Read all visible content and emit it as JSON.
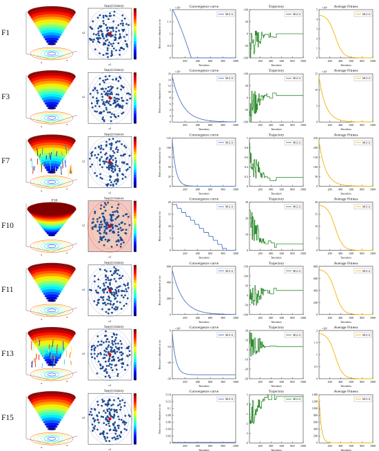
{
  "figure": {
    "rows": [
      {
        "label": "F1",
        "surface_title": "F1",
        "search_title": "Search history",
        "conv_title": "Convergence curve",
        "traj_title": "Trajectory",
        "fit_title": "Average Fitness",
        "conv": {
          "ylim": [
            0,
            2
          ],
          "yticks": [
            "0",
            "0.5",
            "1",
            "1.5",
            "2"
          ],
          "exp": "×10⁴",
          "shape": "step",
          "y0": 2,
          "y1": 0
        },
        "traj": {
          "ylim": [
            -100,
            100
          ],
          "yticks": [
            "-100",
            "-50",
            "0",
            "50",
            "100"
          ],
          "final": 0,
          "start": -100
        },
        "fit": {
          "ylim": [
            0,
            5
          ],
          "yticks": [
            "0",
            "1",
            "2",
            "3",
            "4",
            "5"
          ],
          "exp": "×10⁴",
          "shape": "smooth",
          "y0": 4.5
        }
      },
      {
        "label": "F3",
        "surface_title": "F3",
        "search_title": "Search history",
        "conv_title": "Convergence curve",
        "traj_title": "Trajectory",
        "fit_title": "Average Fitness",
        "conv": {
          "ylim": [
            0,
            16
          ],
          "yticks": [
            "0",
            "2",
            "4",
            "6",
            "8",
            "10",
            "12",
            "14",
            "16"
          ],
          "exp": "×10⁴",
          "shape": "decay",
          "y0": 15
        },
        "traj": {
          "ylim": [
            -100,
            100
          ],
          "yticks": [
            "-100",
            "-50",
            "0",
            "50",
            "100"
          ],
          "final": 10,
          "start": -90
        },
        "fit": {
          "ylim": [
            0,
            15
          ],
          "yticks": [
            "0",
            "5",
            "10",
            "15"
          ],
          "exp": "×10⁵",
          "shape": "decay",
          "y0": 14
        }
      },
      {
        "label": "F7",
        "surface_title": "F7",
        "search_title": "Search history",
        "conv_title": "Convergence curve",
        "traj_title": "Trajectory",
        "fit_title": "Average Fitness",
        "conv": {
          "ylim": [
            0,
            125
          ],
          "yticks": [
            "0",
            "25",
            "50",
            "75",
            "100",
            "125"
          ],
          "exp": "",
          "shape": "fastdecay",
          "y0": 120
        },
        "traj": {
          "ylim": [
            0,
            1.1
          ],
          "yticks": [
            "0",
            "0.2",
            "0.4",
            "0.6",
            "0.8",
            "1"
          ],
          "final": 0.2,
          "start": 1.0
        },
        "fit": {
          "ylim": [
            0,
            270
          ],
          "yticks": [
            "0",
            "50",
            "100",
            "150",
            "200",
            "250"
          ],
          "exp": "",
          "shape": "decay",
          "y0": 250
        }
      },
      {
        "label": "F10",
        "surface_title": "F10",
        "search_title": "Search history",
        "conv_title": "Convergence curve",
        "traj_title": "Trajectory",
        "fit_title": "Average Fitness",
        "conv": {
          "ylim": [
            0,
            21
          ],
          "yticks": [
            "0",
            "5",
            "10",
            "15",
            "20"
          ],
          "exp": "",
          "shape": "stairs",
          "y0": 20
        },
        "traj": {
          "ylim": [
            -5,
            32
          ],
          "yticks": [
            "0",
            "10",
            "20",
            "30"
          ],
          "final": 0,
          "start": 30
        },
        "fit": {
          "ylim": [
            0,
            21
          ],
          "yticks": [
            "0",
            "5",
            "10",
            "15",
            "20"
          ],
          "exp": "",
          "shape": "smooth",
          "y0": 20
        }
      },
      {
        "label": "F11",
        "surface_title": "F11",
        "search_title": "Search history",
        "conv_title": "Convergence curve",
        "traj_title": "Trajectory",
        "fit_title": "Average Fitness",
        "conv": {
          "ylim": [
            0,
            650
          ],
          "yticks": [
            "0",
            "200",
            "400",
            "600"
          ],
          "exp": "",
          "shape": "decay",
          "y0": 600
        },
        "traj": {
          "ylim": [
            -150,
            160
          ],
          "yticks": [
            "-100",
            "-50",
            "0",
            "50",
            "100",
            "150"
          ],
          "final": 5,
          "start": -120
        },
        "fit": {
          "ylim": [
            0,
            900
          ],
          "yticks": [
            "0",
            "200",
            "400",
            "600",
            "800"
          ],
          "exp": "",
          "shape": "smooth",
          "y0": 850
        }
      },
      {
        "label": "F13",
        "surface_title": "F13",
        "search_title": "Search history",
        "conv_title": "Convergence curve",
        "traj_title": "Trajectory",
        "fit_title": "Average Fitness",
        "conv": {
          "ylim": [
            -35,
            2
          ],
          "yticks": [
            "-30",
            "-20",
            "-10",
            "0"
          ],
          "exp": "×10⁸",
          "shape": "fastdecay",
          "y0": 0,
          "y1": -32
        },
        "traj": {
          "ylim": [
            -35,
            25
          ],
          "yticks": [
            "-30",
            "-20",
            "-10",
            "0",
            "10",
            "20"
          ],
          "final": 5,
          "start": 20
        },
        "fit": {
          "ylim": [
            0,
            2.1
          ],
          "yticks": [
            "0",
            "0.5",
            "1",
            "1.5",
            "2"
          ],
          "exp": "×10⁸",
          "shape": "smooth",
          "y0": 2
        }
      },
      {
        "label": "F15",
        "surface_title": "F15",
        "search_title": "Search history",
        "conv_title": "Convergence curve",
        "traj_title": "Trajectory",
        "fit_title": "Average Fitness",
        "conv": {
          "ylim": [
            0,
            0.15
          ],
          "yticks": [
            "0",
            "0.02",
            "0.04",
            "0.06",
            "0.08",
            "0.1",
            "0.12",
            "0.14"
          ],
          "exp": "",
          "shape": "flat",
          "y0": 0.002
        },
        "traj": {
          "ylim": [
            -4,
            1.2
          ],
          "yticks": [
            "-4",
            "-3",
            "-2",
            "-1",
            "0",
            "1"
          ],
          "final": 1,
          "start": -4
        },
        "fit": {
          "ylim": [
            0,
            1500
          ],
          "yticks": [
            "0",
            "200",
            "400",
            "600",
            "800",
            "1000",
            "1200",
            "1400"
          ],
          "exp": "",
          "shape": "fastdecay",
          "y0": 1450
        }
      }
    ],
    "x_label": "Iteration",
    "x_ticks": [
      "200",
      "400",
      "600",
      "800",
      "1000"
    ],
    "conv_ylabel": "Best score obtained so far",
    "search_xlabel": "x1",
    "search_ylabel": "x2",
    "legend_label": "MGCA",
    "colors": {
      "conv": "#4472c4",
      "traj": "#2e8b2e",
      "fit": "#f0b400",
      "axis": "#333333",
      "dot": "#1f4e9a",
      "best": "#e00000"
    }
  },
  "chart_data": [
    {
      "type": "line",
      "title": "Convergence curve",
      "xlabel": "Iteration",
      "ylabel": "Best score obtained so far",
      "xlim": [
        0,
        1000
      ],
      "series": [
        {
          "name": "MGCA",
          "note": "F1"
        }
      ]
    },
    {
      "type": "line",
      "title": "Trajectory",
      "xlabel": "Iteration",
      "xlim": [
        0,
        1000
      ],
      "series": [
        {
          "name": "MGCA"
        }
      ]
    },
    {
      "type": "line",
      "title": "Average Fitness",
      "xlabel": "Iteration",
      "xlim": [
        0,
        1000
      ],
      "series": [
        {
          "name": "MGCA"
        }
      ]
    },
    {
      "type": "scatter",
      "title": "Search history",
      "xlabel": "x1",
      "ylabel": "x2"
    }
  ]
}
